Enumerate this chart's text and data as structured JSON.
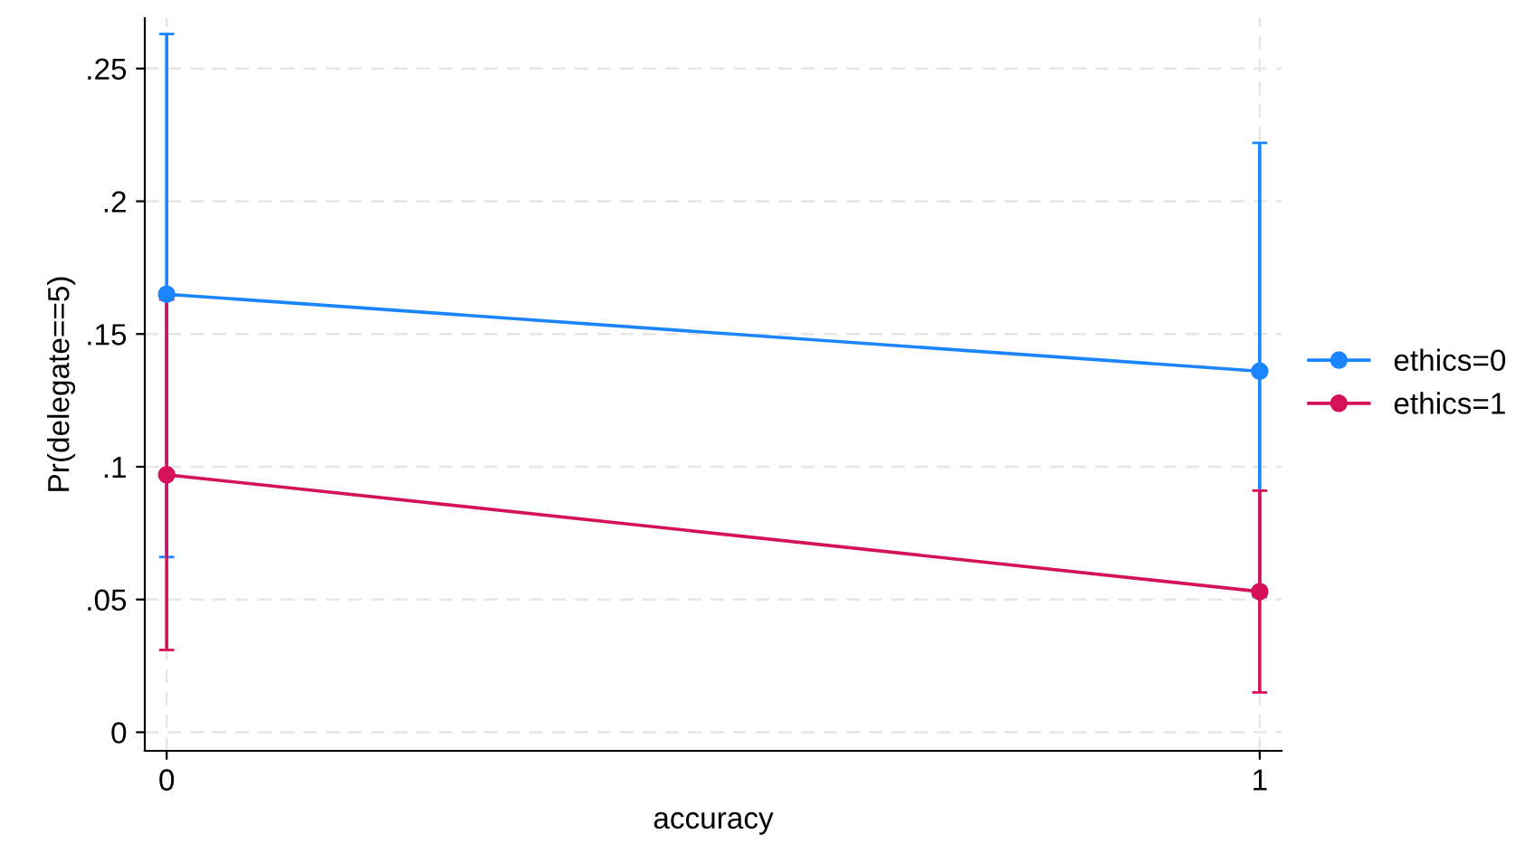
{
  "chart_data": {
    "type": "line",
    "xlabel": "accuracy",
    "ylabel": "Pr(delegate==5)",
    "x": [
      0,
      1
    ],
    "series": [
      {
        "name": "ethics=0",
        "color": "#1a85ff",
        "values": [
          0.165,
          0.136
        ],
        "errors": [
          [
            0.066,
            0.263
          ],
          [
            0.051,
            0.222
          ]
        ]
      },
      {
        "name": "ethics=1",
        "color": "#d41159",
        "values": [
          0.097,
          0.053
        ],
        "errors": [
          [
            0.031,
            0.163
          ],
          [
            0.015,
            0.091
          ]
        ]
      }
    ],
    "xlim": [
      -0.02,
      1.02
    ],
    "xticks": [
      0,
      1
    ],
    "ylim": [
      -0.007,
      0.269
    ],
    "yticks": [
      {
        "value": 0,
        "label": "0"
      },
      {
        "value": 0.05,
        "label": ".05"
      },
      {
        "value": 0.1,
        "label": ".1"
      },
      {
        "value": 0.15,
        "label": ".15"
      },
      {
        "value": 0.2,
        "label": ".2"
      },
      {
        "value": 0.25,
        "label": ".25"
      }
    ],
    "grid": true,
    "legend": "right",
    "marker": "circle",
    "line_style": "solid"
  }
}
